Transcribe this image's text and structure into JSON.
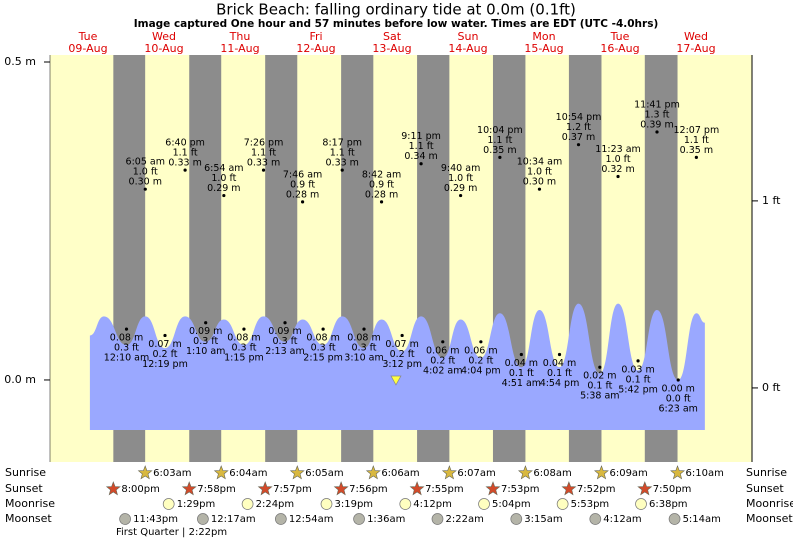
{
  "chart_data": {
    "type": "tide",
    "title": "Brick Beach: falling  ordinary tide at 0.0m (0.1ft)",
    "subtitle": "Image captured One hour and 57 minutes before low water. Times are EDT (UTC -4.0hrs)",
    "ylim": [
      -0.129,
      0.511
    ],
    "yticks": [
      {
        "value": 0.0,
        "label": "0.0 m"
      },
      {
        "value": 0.5,
        "label": "0.5 m"
      }
    ],
    "y2lim": [
      -0.396,
      1.78
    ],
    "y2ticks": [
      {
        "value": 0,
        "label": "0 ft"
      },
      {
        "value": 1,
        "label": "1 ft"
      }
    ],
    "row_labels": [
      "Sunrise",
      "Sunset",
      "Moonrise",
      "Moonset"
    ],
    "moon_phase": "First Quarter | 2:22pm",
    "now": {
      "x": 109.25,
      "value": 0.0
    },
    "curve": {
      "x": [
        12.6,
        17.0,
        24.17,
        30.08,
        36.32,
        42.67,
        49.17,
        54.9,
        61.25,
        67.43,
        74.22,
        79.77,
        86.25,
        92.28,
        99.17,
        104.7,
        111.2,
        117.18,
        124.03,
        129.67,
        136.07,
        142.07,
        148.85,
        154.57,
        160.9,
        166.9,
        173.63,
        179.38,
        185.7,
        191.68,
        198.38,
        204.12,
        206.8
      ],
      "values": [
        0.07,
        0.1,
        0.055,
        0.1,
        0.05,
        0.1,
        0.06,
        0.095,
        0.055,
        0.1,
        0.06,
        0.095,
        0.055,
        0.1,
        0.05,
        0.095,
        0.045,
        0.1,
        0.035,
        0.095,
        0.035,
        0.105,
        0.02,
        0.11,
        0.02,
        0.12,
        0.01,
        0.12,
        0.015,
        0.11,
        0.0,
        0.105,
        0.09
      ]
    },
    "days": [
      {
        "weekday": "Tue",
        "date": "09-Aug",
        "sunrise": null,
        "sunset": "8:00pm",
        "moonrise": null,
        "moonset": "11:43pm",
        "high_tides": [],
        "low_tides": []
      },
      {
        "weekday": "Wed",
        "date": "10-Aug",
        "sunrise": "6:03am",
        "sunset": "7:58pm",
        "moonrise": "1:29pm",
        "moonset": null,
        "high_tides": [
          {
            "time": "6:05 am",
            "value": 0.3,
            "label": "0.30 m",
            "feet": "1.0 ft"
          },
          {
            "time": "6:40 pm",
            "value": 0.33,
            "label": "0.33 m",
            "feet": "1.1 ft"
          }
        ],
        "low_tides": [
          {
            "time": "12:10 am",
            "value": 0.08,
            "label": "0.08 m",
            "feet": "0.3 ft"
          },
          {
            "time": "12:19 pm",
            "value": 0.07,
            "label": "0.07 m",
            "feet": "0.2 ft"
          }
        ]
      },
      {
        "weekday": "Thu",
        "date": "11-Aug",
        "sunrise": "6:04am",
        "sunset": "7:57pm",
        "moonrise": "2:24pm",
        "moonset": "12:17am",
        "high_tides": [
          {
            "time": "6:54 am",
            "value": 0.29,
            "label": "0.29 m",
            "feet": "1.0 ft"
          },
          {
            "time": "7:26 pm",
            "value": 0.33,
            "label": "0.33 m",
            "feet": "1.1 ft"
          }
        ],
        "low_tides": [
          {
            "time": "1:10 am",
            "value": 0.09,
            "label": "0.09 m",
            "feet": "0.3 ft"
          },
          {
            "time": "1:15 pm",
            "value": 0.08,
            "label": "0.08 m",
            "feet": "0.3 ft"
          }
        ]
      },
      {
        "weekday": "Fri",
        "date": "12-Aug",
        "sunrise": "6:05am",
        "sunset": "7:56pm",
        "moonrise": "3:19pm",
        "moonset": "12:54am",
        "high_tides": [
          {
            "time": "7:46 am",
            "value": 0.28,
            "label": "0.28 m",
            "feet": "0.9 ft"
          },
          {
            "time": "8:17 pm",
            "value": 0.33,
            "label": "0.33 m",
            "feet": "1.1 ft"
          }
        ],
        "low_tides": [
          {
            "time": "2:13 am",
            "value": 0.09,
            "label": "0.09 m",
            "feet": "0.3 ft"
          },
          {
            "time": "2:15 pm",
            "value": 0.08,
            "label": "0.08 m",
            "feet": "0.3 ft"
          }
        ]
      },
      {
        "weekday": "Sat",
        "date": "13-Aug",
        "sunrise": "6:06am",
        "sunset": "7:55pm",
        "moonrise": "4:12pm",
        "moonset": "1:36am",
        "high_tides": [
          {
            "time": "8:42 am",
            "value": 0.28,
            "label": "0.28 m",
            "feet": "0.9 ft"
          },
          {
            "time": "9:11 pm",
            "value": 0.34,
            "label": "0.34 m",
            "feet": "1.1 ft"
          }
        ],
        "low_tides": [
          {
            "time": "3:10 am",
            "value": 0.08,
            "label": "0.08 m",
            "feet": "0.3 ft"
          },
          {
            "time": "3:12 pm",
            "value": 0.07,
            "label": "0.07 m",
            "feet": "0.2 ft"
          }
        ]
      },
      {
        "weekday": "Sun",
        "date": "14-Aug",
        "sunrise": "6:07am",
        "sunset": "7:53pm",
        "moonrise": "5:04pm",
        "moonset": "2:22am",
        "high_tides": [
          {
            "time": "9:40 am",
            "value": 0.29,
            "label": "0.29 m",
            "feet": "1.0 ft"
          },
          {
            "time": "10:04 pm",
            "value": 0.35,
            "label": "0.35 m",
            "feet": "1.1 ft"
          }
        ],
        "low_tides": [
          {
            "time": "4:02 am",
            "value": 0.06,
            "label": "0.06 m",
            "feet": "0.2 ft"
          },
          {
            "time": "4:04 pm",
            "value": 0.06,
            "label": "0.06 m",
            "feet": "0.2 ft"
          }
        ]
      },
      {
        "weekday": "Mon",
        "date": "15-Aug",
        "sunrise": "6:08am",
        "sunset": "7:52pm",
        "moonrise": "5:53pm",
        "moonset": "3:15am",
        "high_tides": [
          {
            "time": "10:34 am",
            "value": 0.3,
            "label": "0.30 m",
            "feet": "1.0 ft"
          },
          {
            "time": "10:54 pm",
            "value": 0.37,
            "label": "0.37 m",
            "feet": "1.2 ft"
          }
        ],
        "low_tides": [
          {
            "time": "4:51 am",
            "value": 0.04,
            "label": "0.04 m",
            "feet": "0.1 ft"
          },
          {
            "time": "4:54 pm",
            "value": 0.04,
            "label": "0.04 m",
            "feet": "0.1 ft"
          }
        ]
      },
      {
        "weekday": "Tue",
        "date": "16-Aug",
        "sunrise": "6:09am",
        "sunset": "7:50pm",
        "moonrise": "6:38pm",
        "moonset": "4:12am",
        "high_tides": [
          {
            "time": "11:23 am",
            "value": 0.32,
            "label": "0.32 m",
            "feet": "1.0 ft"
          },
          {
            "time": "11:41 pm",
            "value": 0.39,
            "label": "0.39 m",
            "feet": "1.3 ft"
          }
        ],
        "low_tides": [
          {
            "time": "5:38 am",
            "value": 0.02,
            "label": "0.02 m",
            "feet": "0.1 ft"
          },
          {
            "time": "5:42 pm",
            "value": 0.03,
            "label": "0.03 m",
            "feet": "0.1 ft"
          }
        ]
      },
      {
        "weekday": "Wed",
        "date": "17-Aug",
        "sunrise": "6:10am",
        "sunset": null,
        "moonrise": null,
        "moonset": "5:14am",
        "high_tides": [
          {
            "time": "12:07 pm",
            "value": 0.35,
            "label": "0.35 m",
            "feet": "1.1 ft"
          }
        ],
        "low_tides": [
          {
            "time": "6:23 am",
            "value": 0.0,
            "label": "0.00 m",
            "feet": "0.0 ft"
          }
        ]
      }
    ]
  }
}
